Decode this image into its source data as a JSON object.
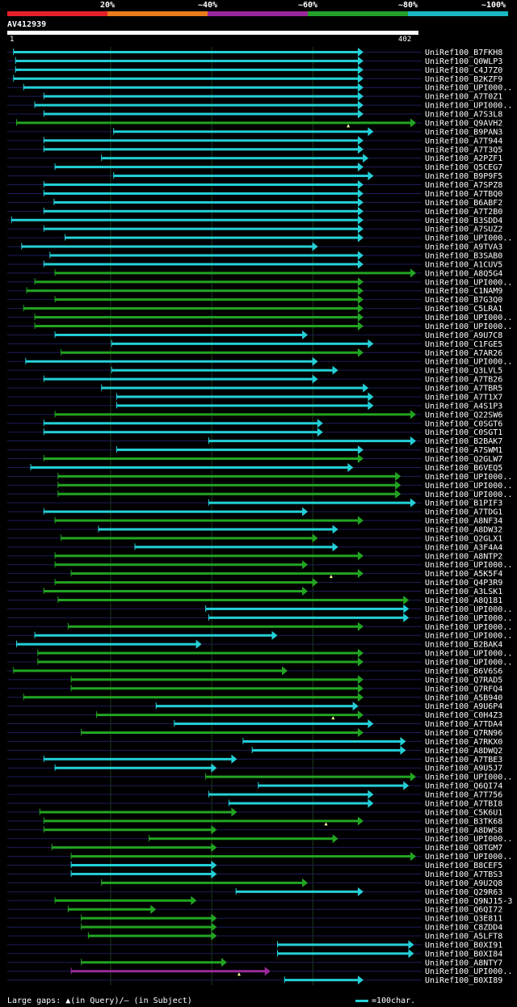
{
  "colors": {
    "background": "#000000",
    "row_line": "#1d1d5a",
    "grid": "#1e3a1e",
    "cyan": "#24d0d8",
    "green": "#22a522",
    "magenta": "#9a2a9a",
    "gap": "#ffffa0",
    "text": "#ffffff"
  },
  "legend": [
    {
      "label": "20%",
      "color": "#e5202a"
    },
    {
      "label": "~40%",
      "color": "#e87b1c"
    },
    {
      "label": "~60%",
      "color": "#9b279c"
    },
    {
      "label": "~80%",
      "color": "#21a02a"
    },
    {
      "label": "~100%",
      "color": "#1bb8c1"
    }
  ],
  "query": {
    "title": "AV412939",
    "start_label": "1",
    "end_label": "402",
    "length": 402
  },
  "footer": {
    "gaps_text": "Large gaps: ▲(in Query)/— (in Subject)",
    "scale_text": "=100char."
  },
  "chart_data": {
    "type": "alignment",
    "x_range": [
      1,
      402
    ],
    "gridlines": [
      100,
      200,
      300
    ],
    "rows": [
      {
        "label": "UniRef100_B7FKH8",
        "s": 4,
        "e": 350,
        "c": "cyan"
      },
      {
        "label": "UniRef100_Q0WLP3",
        "s": 6,
        "e": 350,
        "c": "cyan"
      },
      {
        "label": "UniRef100_C4J7Z0",
        "s": 6,
        "e": 350,
        "c": "cyan"
      },
      {
        "label": "UniRef100_B2KZF9",
        "s": 4,
        "e": 350,
        "c": "cyan"
      },
      {
        "label": "UniRef100_UPI000..",
        "s": 14,
        "e": 350,
        "c": "cyan"
      },
      {
        "label": "UniRef100_A7T0Z1",
        "s": 34,
        "e": 350,
        "c": "cyan"
      },
      {
        "label": "UniRef100_UPI000..",
        "s": 25,
        "e": 350,
        "c": "cyan"
      },
      {
        "label": "UniRef100_A7S3L8",
        "s": 34,
        "e": 350,
        "c": "cyan"
      },
      {
        "label": "UniRef100_Q9AVH2",
        "s": 7,
        "e": 402,
        "c": "green",
        "gap": 335
      },
      {
        "label": "UniRef100_B9PAN3",
        "s": 103,
        "e": 360,
        "c": "cyan"
      },
      {
        "label": "UniRef100_A7T944",
        "s": 34,
        "e": 350,
        "c": "cyan"
      },
      {
        "label": "UniRef100_A7T3Q5",
        "s": 34,
        "e": 350,
        "c": "cyan"
      },
      {
        "label": "UniRef100_A2PZF1",
        "s": 91,
        "e": 355,
        "c": "cyan"
      },
      {
        "label": "UniRef100_Q5CEG7",
        "s": 45,
        "e": 350,
        "c": "cyan"
      },
      {
        "label": "UniRef100_B9P9F5",
        "s": 103,
        "e": 360,
        "c": "cyan"
      },
      {
        "label": "UniRef100_A7SPZ8",
        "s": 34,
        "e": 350,
        "c": "cyan"
      },
      {
        "label": "UniRef100_A7TBQ0",
        "s": 34,
        "e": 350,
        "c": "cyan"
      },
      {
        "label": "UniRef100_B6ABF2",
        "s": 44,
        "e": 350,
        "c": "cyan"
      },
      {
        "label": "UniRef100_A7T2B0",
        "s": 34,
        "e": 350,
        "c": "cyan"
      },
      {
        "label": "UniRef100_B3SDD4",
        "s": 2,
        "e": 350,
        "c": "cyan"
      },
      {
        "label": "UniRef100_A7SUZ2",
        "s": 34,
        "e": 350,
        "c": "cyan"
      },
      {
        "label": "UniRef100_UPI000..",
        "s": 55,
        "e": 350,
        "c": "cyan"
      },
      {
        "label": "UniRef100_A9TVA3",
        "s": 12,
        "e": 305,
        "c": "cyan"
      },
      {
        "label": "UniRef100_B3SAB0",
        "s": 40,
        "e": 350,
        "c": "cyan"
      },
      {
        "label": "UniRef100_A1CUV5",
        "s": 34,
        "e": 350,
        "c": "cyan"
      },
      {
        "label": "UniRef100_A8Q5G4",
        "s": 45,
        "e": 402,
        "c": "green"
      },
      {
        "label": "UniRef100_UPI000..",
        "s": 25,
        "e": 350,
        "c": "green"
      },
      {
        "label": "UniRef100_C1NAM9",
        "s": 17,
        "e": 350,
        "c": "green"
      },
      {
        "label": "UniRef100_B7G3Q0",
        "s": 45,
        "e": 350,
        "c": "green"
      },
      {
        "label": "UniRef100_C5LRA1",
        "s": 14,
        "e": 350,
        "c": "green"
      },
      {
        "label": "UniRef100_UPI000..",
        "s": 25,
        "e": 350,
        "c": "green"
      },
      {
        "label": "UniRef100_UPI000..",
        "s": 25,
        "e": 350,
        "c": "green"
      },
      {
        "label": "UniRef100_A9U7C8",
        "s": 45,
        "e": 295,
        "c": "cyan"
      },
      {
        "label": "UniRef100_C1FGE5",
        "s": 101,
        "e": 360,
        "c": "cyan"
      },
      {
        "label": "UniRef100_A7AR26",
        "s": 51,
        "e": 350,
        "c": "green"
      },
      {
        "label": "UniRef100_UPI000..",
        "s": 16,
        "e": 305,
        "c": "cyan"
      },
      {
        "label": "UniRef100_Q3LVL5",
        "s": 101,
        "e": 325,
        "c": "cyan"
      },
      {
        "label": "UniRef100_A7TB26",
        "s": 34,
        "e": 305,
        "c": "cyan"
      },
      {
        "label": "UniRef100_A7TBR5",
        "s": 91,
        "e": 355,
        "c": "cyan"
      },
      {
        "label": "UniRef100_A7T1X7",
        "s": 106,
        "e": 360,
        "c": "cyan"
      },
      {
        "label": "UniRef100_A4S1P3",
        "s": 106,
        "e": 360,
        "c": "cyan"
      },
      {
        "label": "UniRef100_Q22SW6",
        "s": 45,
        "e": 402,
        "c": "green"
      },
      {
        "label": "UniRef100_C0SGT6",
        "s": 34,
        "e": 310,
        "c": "cyan"
      },
      {
        "label": "UniRef100_C0SGT1",
        "s": 34,
        "e": 310,
        "c": "cyan"
      },
      {
        "label": "UniRef100_B2BAK7",
        "s": 197,
        "e": 402,
        "c": "cyan"
      },
      {
        "label": "UniRef100_A7SWM1",
        "s": 106,
        "e": 350,
        "c": "cyan"
      },
      {
        "label": "UniRef100_Q2GLW7",
        "s": 34,
        "e": 350,
        "c": "green"
      },
      {
        "label": "UniRef100_B6VEQ5",
        "s": 21,
        "e": 340,
        "c": "cyan"
      },
      {
        "label": "UniRef100_UPI000..",
        "s": 48,
        "e": 387,
        "c": "green"
      },
      {
        "label": "UniRef100_UPI000..",
        "s": 48,
        "e": 387,
        "c": "green"
      },
      {
        "label": "UniRef100_UPI000..",
        "s": 48,
        "e": 387,
        "c": "green"
      },
      {
        "label": "UniRef100_B1PIF3",
        "s": 197,
        "e": 402,
        "c": "cyan"
      },
      {
        "label": "UniRef100_A7TDG1",
        "s": 34,
        "e": 295,
        "c": "cyan"
      },
      {
        "label": "UniRef100_A8NF34",
        "s": 45,
        "e": 350,
        "c": "green"
      },
      {
        "label": "UniRef100_A8DW32",
        "s": 88,
        "e": 325,
        "c": "cyan"
      },
      {
        "label": "UniRef100_Q2GLX1",
        "s": 51,
        "e": 305,
        "c": "green"
      },
      {
        "label": "UniRef100_A3F4A4",
        "s": 124,
        "e": 325,
        "c": "cyan"
      },
      {
        "label": "UniRef100_A8NTP2",
        "s": 45,
        "e": 350,
        "c": "green"
      },
      {
        "label": "UniRef100_UPI000..",
        "s": 45,
        "e": 295,
        "c": "green"
      },
      {
        "label": "UniRef100_A5K5F4",
        "s": 61,
        "e": 350,
        "c": "green",
        "gap": 318
      },
      {
        "label": "UniRef100_Q4P3R9",
        "s": 45,
        "e": 305,
        "c": "green"
      },
      {
        "label": "UniRef100_A3LSK1",
        "s": 34,
        "e": 295,
        "c": "green"
      },
      {
        "label": "UniRef100_A8Q181",
        "s": 48,
        "e": 395,
        "c": "green"
      },
      {
        "label": "UniRef100_UPI000..",
        "s": 194,
        "e": 395,
        "c": "cyan"
      },
      {
        "label": "UniRef100_UPI000..",
        "s": 197,
        "e": 395,
        "c": "cyan"
      },
      {
        "label": "UniRef100_UPI000..",
        "s": 58,
        "e": 350,
        "c": "green"
      },
      {
        "label": "UniRef100_UPI000..",
        "s": 25,
        "e": 265,
        "c": "cyan"
      },
      {
        "label": "UniRef100_B2BAK4",
        "s": 7,
        "e": 190,
        "c": "cyan"
      },
      {
        "label": "UniRef100_UPI000..",
        "s": 28,
        "e": 350,
        "c": "green"
      },
      {
        "label": "UniRef100_UPI000..",
        "s": 28,
        "e": 350,
        "c": "green"
      },
      {
        "label": "UniRef100_B6V6S6",
        "s": 4,
        "e": 275,
        "c": "green"
      },
      {
        "label": "UniRef100_Q7RAD5",
        "s": 61,
        "e": 350,
        "c": "green"
      },
      {
        "label": "UniRef100_Q7RFQ4",
        "s": 61,
        "e": 350,
        "c": "green"
      },
      {
        "label": "UniRef100_A5B940",
        "s": 14,
        "e": 350,
        "c": "green"
      },
      {
        "label": "UniRef100_A9U6P4",
        "s": 145,
        "e": 345,
        "c": "cyan"
      },
      {
        "label": "UniRef100_C0H4Z3",
        "s": 86,
        "e": 350,
        "c": "green",
        "gap": 320
      },
      {
        "label": "UniRef100_A7TDA4",
        "s": 163,
        "e": 360,
        "c": "cyan"
      },
      {
        "label": "UniRef100_Q7RN96",
        "s": 71,
        "e": 350,
        "c": "green"
      },
      {
        "label": "UniRef100_A7RKX0",
        "s": 231,
        "e": 392,
        "c": "cyan"
      },
      {
        "label": "UniRef100_A8DWQ2",
        "s": 240,
        "e": 392,
        "c": "cyan"
      },
      {
        "label": "UniRef100_A7TBE3",
        "s": 34,
        "e": 225,
        "c": "cyan"
      },
      {
        "label": "UniRef100_A9U5J7",
        "s": 45,
        "e": 205,
        "c": "cyan"
      },
      {
        "label": "UniRef100_UPI000..",
        "s": 194,
        "e": 402,
        "c": "green"
      },
      {
        "label": "UniRef100_Q6QI74",
        "s": 246,
        "e": 395,
        "c": "cyan"
      },
      {
        "label": "UniRef100_A7T756",
        "s": 197,
        "e": 360,
        "c": "cyan"
      },
      {
        "label": "UniRef100_A7TBI8",
        "s": 217,
        "e": 360,
        "c": "cyan"
      },
      {
        "label": "UniRef100_C5K6U1",
        "s": 30,
        "e": 225,
        "c": "green"
      },
      {
        "label": "UniRef100_B3TK68",
        "s": 34,
        "e": 350,
        "c": "green",
        "gap": 313
      },
      {
        "label": "UniRef100_A8DWS8",
        "s": 34,
        "e": 205,
        "c": "green"
      },
      {
        "label": "UniRef100_UPI000..",
        "s": 138,
        "e": 325,
        "c": "green"
      },
      {
        "label": "UniRef100_Q8TGM7",
        "s": 42,
        "e": 205,
        "c": "green"
      },
      {
        "label": "UniRef100_UPI000..",
        "s": 61,
        "e": 402,
        "c": "green"
      },
      {
        "label": "UniRef100_B8CEF5",
        "s": 61,
        "e": 205,
        "c": "cyan"
      },
      {
        "label": "UniRef100_A7TBS3",
        "s": 61,
        "e": 205,
        "c": "cyan"
      },
      {
        "label": "UniRef100_A9U2Q8",
        "s": 91,
        "e": 295,
        "c": "green"
      },
      {
        "label": "UniRef100_Q29R63",
        "s": 224,
        "e": 350,
        "c": "cyan"
      },
      {
        "label": "UniRef100_Q9NJ15-3",
        "s": 45,
        "e": 185,
        "c": "green"
      },
      {
        "label": "UniRef100_Q6QI72",
        "s": 58,
        "e": 145,
        "c": "green"
      },
      {
        "label": "UniRef100_Q3E811",
        "s": 71,
        "e": 205,
        "c": "green"
      },
      {
        "label": "UniRef100_C8ZDD4",
        "s": 71,
        "e": 205,
        "c": "green"
      },
      {
        "label": "UniRef100_A5LFT8",
        "s": 78,
        "e": 205,
        "c": "green"
      },
      {
        "label": "UniRef100_B0XI91",
        "s": 265,
        "e": 400,
        "c": "cyan"
      },
      {
        "label": "UniRef100_B0XI84",
        "s": 265,
        "e": 400,
        "c": "cyan"
      },
      {
        "label": "UniRef100_A8NTY7",
        "s": 71,
        "e": 215,
        "c": "green"
      },
      {
        "label": "UniRef100_UPI000..",
        "s": 61,
        "e": 258,
        "c": "magenta",
        "gap": 227
      },
      {
        "label": "UniRef100_B0XI89",
        "s": 272,
        "e": 350,
        "c": "cyan"
      }
    ]
  }
}
